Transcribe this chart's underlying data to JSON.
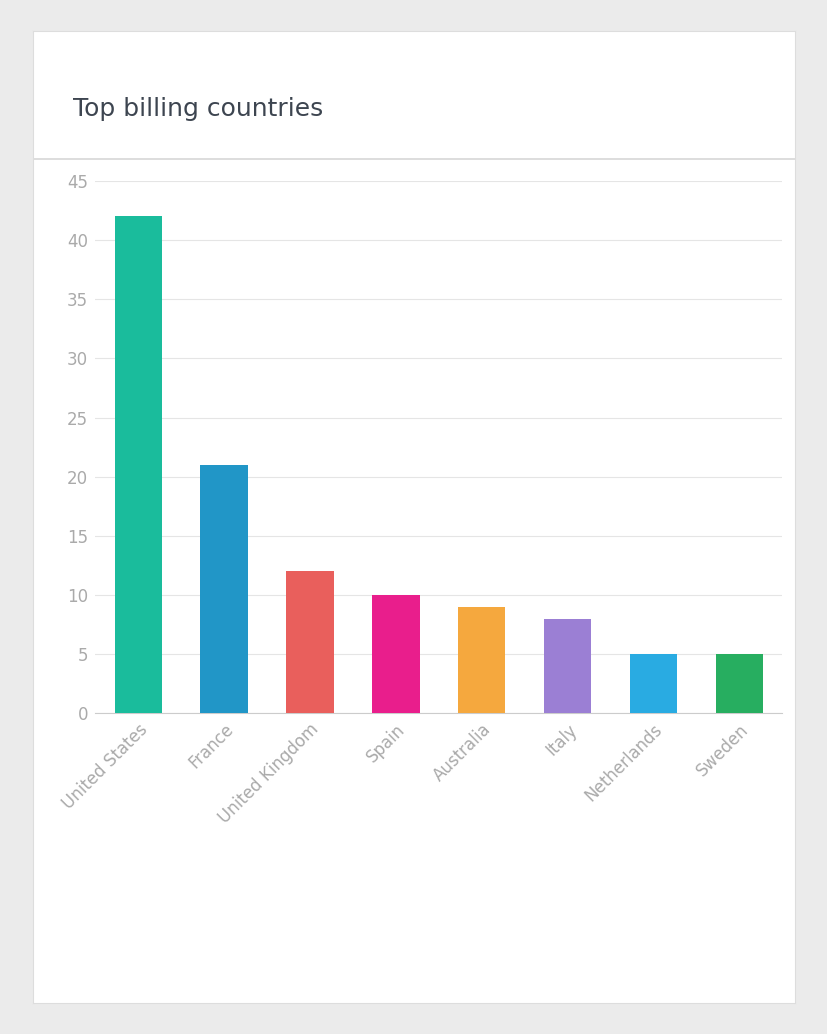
{
  "title": "Top billing countries",
  "categories": [
    "United States",
    "France",
    "United Kingdom",
    "Spain",
    "Australia",
    "Italy",
    "Netherlands",
    "Sweden"
  ],
  "values": [
    42,
    21,
    12,
    10,
    9,
    8,
    5,
    5
  ],
  "bar_colors": [
    "#1abc9c",
    "#2196c7",
    "#e95f5c",
    "#e91e8c",
    "#f5a83e",
    "#9b7fd4",
    "#29abe2",
    "#27ae60"
  ],
  "ylim": [
    0,
    45
  ],
  "yticks": [
    0,
    5,
    10,
    15,
    20,
    25,
    30,
    35,
    40,
    45
  ],
  "title_fontsize": 18,
  "tick_fontsize": 12,
  "title_color": "#3d4550",
  "tick_color": "#aaaaaa",
  "background_color": "#ebebeb",
  "panel_color": "#ffffff",
  "grid_color": "#e5e5e5",
  "separator_color": "#dddddd",
  "bar_width": 0.55
}
